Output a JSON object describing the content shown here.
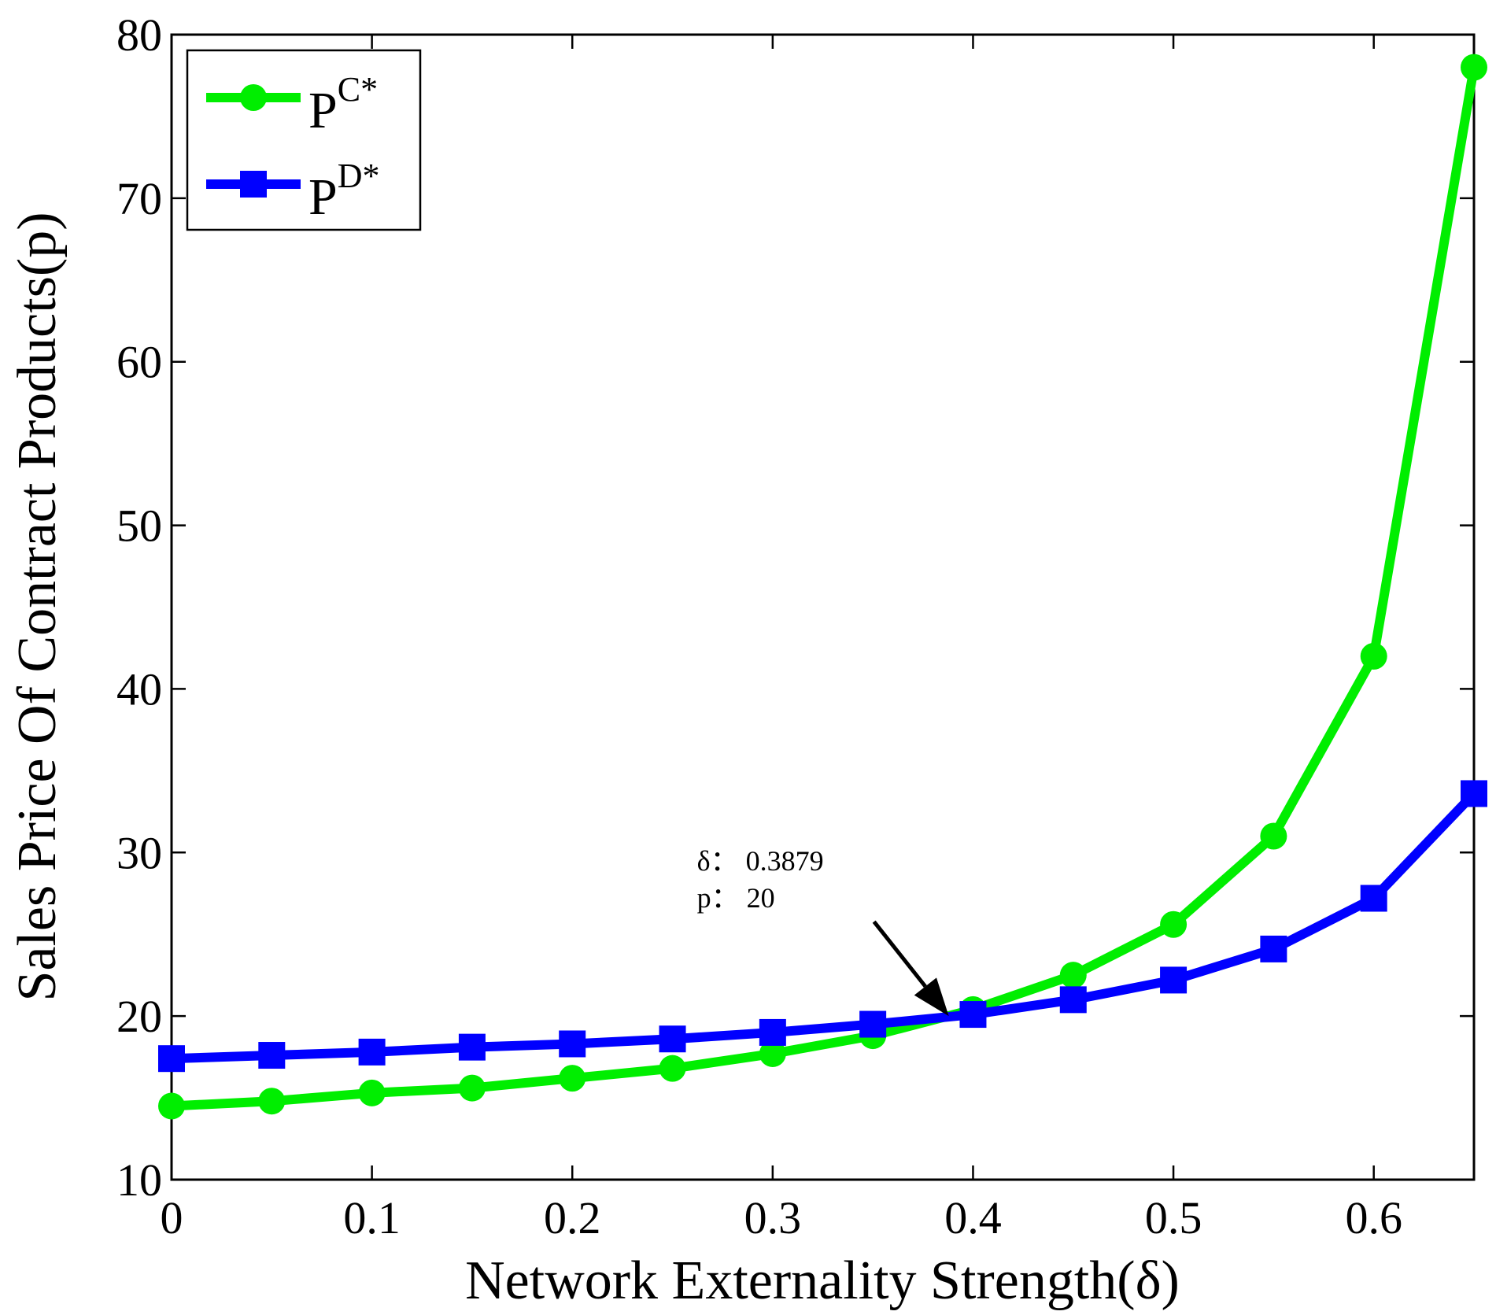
{
  "chart_data": {
    "type": "line",
    "title": "",
    "xlabel": "Network Externality Strength(δ)",
    "ylabel": "Sales Price Of Contract Products(p)",
    "xlim": [
      0,
      0.65
    ],
    "ylim": [
      10,
      80
    ],
    "xticks": [
      0,
      0.1,
      0.2,
      0.3,
      0.4,
      0.5,
      0.6
    ],
    "xtick_labels": [
      "0",
      "0.1",
      "0.2",
      "0.3",
      "0.4",
      "0.5",
      "0.6"
    ],
    "yticks": [
      10,
      20,
      30,
      40,
      50,
      60,
      70,
      80
    ],
    "ytick_labels": [
      "10",
      "20",
      "30",
      "40",
      "50",
      "60",
      "70",
      "80"
    ],
    "x": [
      0,
      0.05,
      0.1,
      0.15,
      0.2,
      0.25,
      0.3,
      0.35,
      0.4,
      0.45,
      0.5,
      0.55,
      0.6,
      0.65
    ],
    "series": [
      {
        "name": "P",
        "sup": "C*",
        "marker": "circle",
        "color": "#00ee00",
        "values": [
          14.5,
          14.8,
          15.3,
          15.6,
          16.2,
          16.8,
          17.7,
          18.8,
          20.4,
          22.5,
          25.6,
          31.0,
          42.0,
          78.0
        ]
      },
      {
        "name": "P",
        "sup": "D*",
        "marker": "square",
        "color": "#0000ff",
        "values": [
          17.4,
          17.6,
          17.8,
          18.1,
          18.3,
          18.6,
          19.0,
          19.5,
          20.1,
          21.0,
          22.2,
          24.1,
          27.2,
          33.6
        ]
      }
    ],
    "legend_position": "top-left",
    "grid": false,
    "annotation": {
      "line1": "δ： 0.3879",
      "line2": "p： 20",
      "point_x": 0.3879,
      "point_y": 20
    }
  }
}
